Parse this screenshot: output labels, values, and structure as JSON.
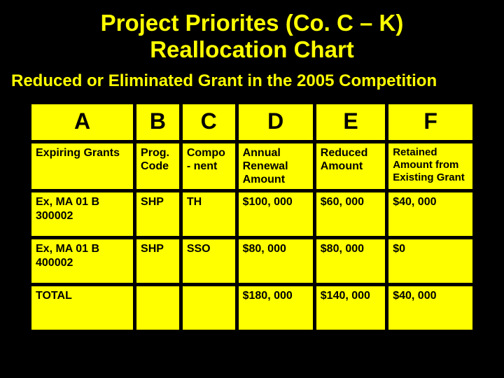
{
  "slide": {
    "title_line1": "Project Priorites (Co. C – K)",
    "title_line2": "Reallocation Chart",
    "subtitle": "Reduced or Eliminated Grant in the 2005 Competition"
  },
  "table": {
    "columns": [
      "A",
      "B",
      "C",
      "D",
      "E",
      "F"
    ],
    "header_row": {
      "a": "Expiring Grants",
      "b": "Prog. Code",
      "c": "Compo - nent",
      "d": "Annual Renewal Amount",
      "e": "Reduced Amount",
      "f": "Retained Amount from Existing Grant"
    },
    "rows": [
      {
        "a": "Ex, MA 01 B 300002",
        "b": "SHP",
        "c": "TH",
        "d": "$100, 000",
        "e": "$60, 000",
        "f": "$40, 000"
      },
      {
        "a": "Ex, MA 01 B 400002",
        "b": "SHP",
        "c": "SSO",
        "d": "$80, 000",
        "e": "$80, 000",
        "f": "$0"
      }
    ],
    "total": {
      "label": "TOTAL",
      "d": "$180, 000",
      "e": "$140, 000",
      "f": "$40, 000"
    },
    "colors": {
      "cell_bg": "#ffff00",
      "border": "#000000",
      "text": "#000000",
      "slide_bg": "#000000",
      "title_color": "#ffff00"
    }
  }
}
